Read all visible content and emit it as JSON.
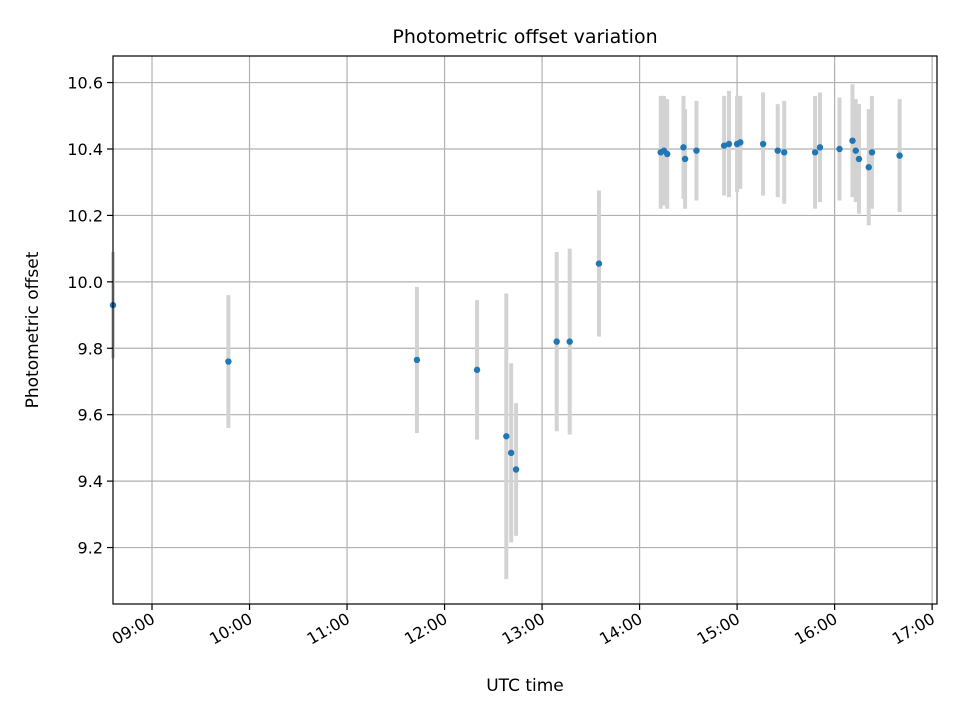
{
  "chart_data": {
    "type": "scatter",
    "title": "Photometric offset variation",
    "xlabel": "UTC time",
    "ylabel": "Photometric offset",
    "xlim": [
      "08:36",
      "17:03"
    ],
    "ylim": [
      9.03,
      10.68
    ],
    "x_ticks": [
      "09:00",
      "10:00",
      "11:00",
      "12:00",
      "13:00",
      "14:00",
      "15:00",
      "16:00",
      "17:00"
    ],
    "y_ticks": [
      9.2,
      9.4,
      9.6,
      9.8,
      10.0,
      10.2,
      10.4,
      10.6
    ],
    "grid": true,
    "colors": {
      "marker": "#1f77b4",
      "errorbar": "#d3d3d3",
      "grid": "#b0b0b0"
    },
    "series": [
      {
        "points": [
          {
            "time": "08:36",
            "y": 9.93,
            "err": 0.16
          },
          {
            "time": "09:47",
            "y": 9.76,
            "err": 0.2
          },
          {
            "time": "11:43",
            "y": 9.765,
            "err": 0.22
          },
          {
            "time": "12:20",
            "y": 9.735,
            "err": 0.21
          },
          {
            "time": "12:38",
            "y": 9.535,
            "err": 0.43
          },
          {
            "time": "12:41",
            "y": 9.485,
            "err": 0.27
          },
          {
            "time": "12:44",
            "y": 9.435,
            "err": 0.2
          },
          {
            "time": "13:09",
            "y": 9.82,
            "err": 0.27
          },
          {
            "time": "13:17",
            "y": 9.82,
            "err": 0.28
          },
          {
            "time": "13:35",
            "y": 10.055,
            "err": 0.22
          },
          {
            "time": "14:13",
            "y": 10.39,
            "err": 0.17
          },
          {
            "time": "14:15",
            "y": 10.395,
            "err": 0.165
          },
          {
            "time": "14:17",
            "y": 10.385,
            "err": 0.165
          },
          {
            "time": "14:27",
            "y": 10.405,
            "err": 0.155
          },
          {
            "time": "14:28",
            "y": 10.37,
            "err": 0.15
          },
          {
            "time": "14:35",
            "y": 10.395,
            "err": 0.15
          },
          {
            "time": "14:52",
            "y": 10.41,
            "err": 0.15
          },
          {
            "time": "14:55",
            "y": 10.415,
            "err": 0.16
          },
          {
            "time": "15:00",
            "y": 10.415,
            "err": 0.145
          },
          {
            "time": "15:02",
            "y": 10.42,
            "err": 0.14
          },
          {
            "time": "15:16",
            "y": 10.415,
            "err": 0.155
          },
          {
            "time": "15:25",
            "y": 10.395,
            "err": 0.14
          },
          {
            "time": "15:29",
            "y": 10.39,
            "err": 0.155
          },
          {
            "time": "15:48",
            "y": 10.39,
            "err": 0.17
          },
          {
            "time": "15:51",
            "y": 10.405,
            "err": 0.165
          },
          {
            "time": "16:03",
            "y": 10.4,
            "err": 0.155
          },
          {
            "time": "16:11",
            "y": 10.425,
            "err": 0.17
          },
          {
            "time": "16:13",
            "y": 10.395,
            "err": 0.155
          },
          {
            "time": "16:15",
            "y": 10.37,
            "err": 0.165
          },
          {
            "time": "16:21",
            "y": 10.345,
            "err": 0.175
          },
          {
            "time": "16:23",
            "y": 10.39,
            "err": 0.17
          },
          {
            "time": "16:40",
            "y": 10.38,
            "err": 0.17
          }
        ]
      }
    ]
  }
}
